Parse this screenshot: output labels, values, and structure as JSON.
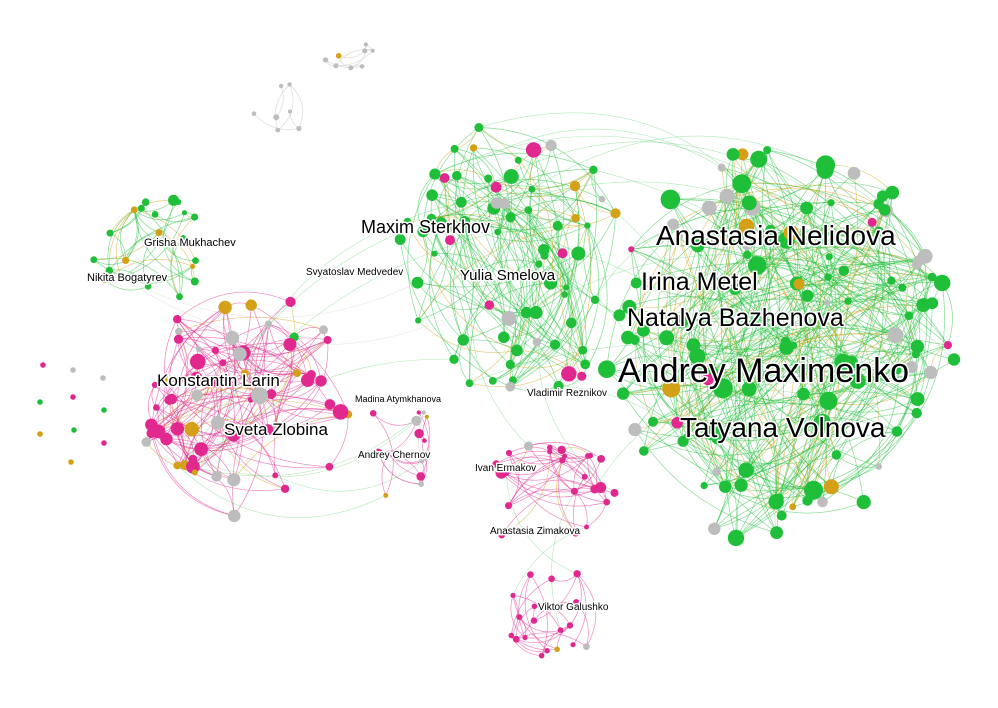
{
  "colors": {
    "green": "#1fbf3a",
    "magenta": "#e0288e",
    "gold": "#d4a017",
    "gray": "#bdbdbd",
    "background": "#ffffff",
    "label": "#000000"
  },
  "labels": [
    {
      "id": "andrey-maximenko",
      "text": "Andrey Maximenko"
    },
    {
      "id": "anastasia-nelidova",
      "text": "Anastasia Nelidova"
    },
    {
      "id": "tatyana-volnova",
      "text": "Tatyana Volnova"
    },
    {
      "id": "natalya-bazhenova",
      "text": "Natalya Bazhenova"
    },
    {
      "id": "irina-metel",
      "text": "Irina Metel"
    },
    {
      "id": "maxim-sterkhov",
      "text": "Maxim Sterkhov"
    },
    {
      "id": "yulia-smelova",
      "text": "Yulia Smelova"
    },
    {
      "id": "konstantin-larin",
      "text": "Konstantin Larin"
    },
    {
      "id": "sveta-zlobina",
      "text": "Sveta Zlobina"
    },
    {
      "id": "grisha-mukhachev",
      "text": "Grisha Mukhachev"
    },
    {
      "id": "nikita-bogatyrev",
      "text": "Nikita Bogatyrev"
    },
    {
      "id": "svyatoslav-medvedev",
      "text": "Svyatoslav Medvedev"
    },
    {
      "id": "vladimir-reznikov",
      "text": "Vladimir Reznikov"
    },
    {
      "id": "madina-atymkhanova",
      "text": "Madina Atymkhanova"
    },
    {
      "id": "andrey-chernov",
      "text": "Andrey Chernov"
    },
    {
      "id": "ivan-ermakov",
      "text": "Ivan Ermakov"
    },
    {
      "id": "anastasia-zimakova",
      "text": "Anastasia Zimakova"
    },
    {
      "id": "viktor-galushko",
      "text": "Viktor Galushko"
    }
  ]
}
